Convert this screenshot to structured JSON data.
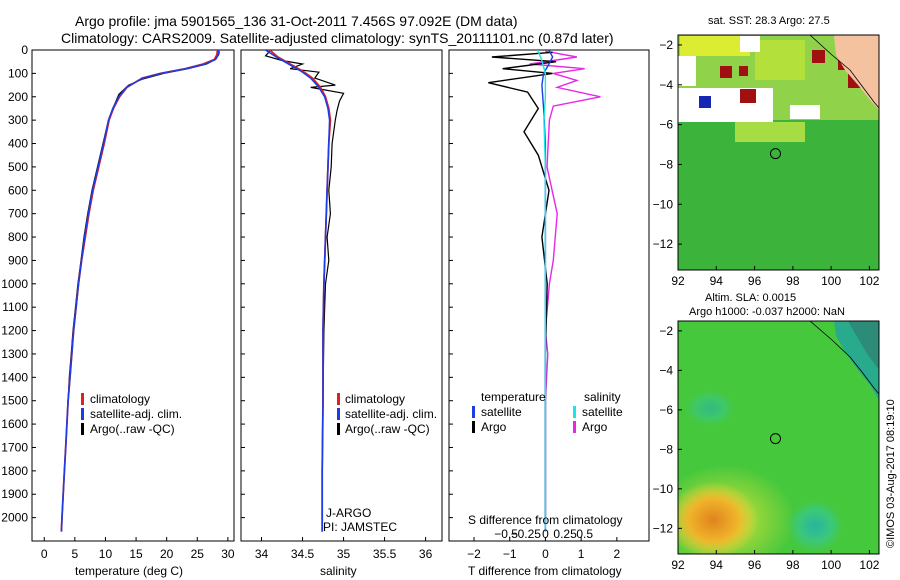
{
  "title": {
    "line1": "Argo profile: jma 5901565_136 31-Oct-2011 7.456S 97.092E (DM data)",
    "line2": "Climatology: CARS2009. Satellite-adjusted climatology: synTS_20111101.nc (0.87d later)"
  },
  "colors": {
    "climatology": "#e02020",
    "satellite": "#1e3ce6",
    "argo": "#000000",
    "argo_sal": "#e628e6",
    "sat_sal": "#19e6e6"
  },
  "depth_axis": {
    "ticks": [
      0,
      100,
      200,
      300,
      400,
      500,
      600,
      700,
      800,
      900,
      1000,
      1100,
      1200,
      1300,
      1400,
      1500,
      1600,
      1700,
      1800,
      1900,
      2000
    ],
    "range": [
      0,
      2100
    ]
  },
  "temp_panel": {
    "xlabel": "temperature (deg C)",
    "xticks": [
      "0",
      "5",
      "10",
      "15",
      "20",
      "25",
      "30"
    ],
    "xticks_num": [
      0,
      5,
      10,
      15,
      20,
      25,
      30
    ],
    "xlim": [
      -2,
      31
    ],
    "legend": [
      "climatology",
      "satellite-adj. clim.",
      "Argo(..raw -QC)"
    ]
  },
  "sal_panel": {
    "xlabel": "salinity",
    "xticks": [
      "34",
      "34.5",
      "35",
      "35.5",
      "36"
    ],
    "xticks_num": [
      34,
      34.5,
      35,
      35.5,
      36
    ],
    "xlim": [
      33.75,
      36.2
    ],
    "legend": [
      "climatology",
      "satellite-adj. clim.",
      "Argo(..raw -QC)"
    ],
    "note1": "J-ARGO",
    "note2": "PI: JAMSTEC"
  },
  "diff_panel": {
    "xlabel": "T difference from climatology",
    "top_label": "S difference from climatology",
    "t_ticks": [
      "−2",
      "−1",
      "0",
      "1",
      "2"
    ],
    "t_ticks_num": [
      -2,
      -1,
      0,
      1,
      2
    ],
    "s_ticks": [
      "−0.5",
      "−0.25",
      "0",
      "0.25",
      "0.5"
    ],
    "xlim": [
      -2.7,
      2.9
    ],
    "legend_temp_title": "temperature",
    "legend_sal_title": "salinity",
    "legend_temp": [
      "satellite",
      "Argo"
    ],
    "legend_sal": [
      "satellite",
      "Argo"
    ]
  },
  "chart_data": [
    {
      "type": "line",
      "name": "temperature profile",
      "xlabel": "temperature (deg C)",
      "ylabel": "depth (m)",
      "series": [
        {
          "name": "climatology",
          "points": [
            [
              28.3,
              0
            ],
            [
              28.2,
              20
            ],
            [
              27.8,
              40
            ],
            [
              26,
              60
            ],
            [
              23,
              80
            ],
            [
              19,
              100
            ],
            [
              16,
              120
            ],
            [
              13.5,
              160
            ],
            [
              12.3,
              200
            ],
            [
              11.3,
              250
            ],
            [
              10.6,
              300
            ],
            [
              9.8,
              400
            ],
            [
              8.9,
              500
            ],
            [
              8,
              600
            ],
            [
              7.3,
              700
            ],
            [
              6.7,
              800
            ],
            [
              6.1,
              900
            ],
            [
              5.6,
              1000
            ],
            [
              5.2,
              1100
            ],
            [
              4.8,
              1200
            ],
            [
              4.5,
              1300
            ],
            [
              4.2,
              1400
            ],
            [
              3.9,
              1500
            ],
            [
              3.7,
              1600
            ],
            [
              3.5,
              1700
            ],
            [
              3.3,
              1800
            ],
            [
              3.1,
              1900
            ],
            [
              2.9,
              2000
            ],
            [
              2.8,
              2060
            ]
          ]
        },
        {
          "name": "satellite-adj. clim.",
          "points": [
            [
              28.5,
              0
            ],
            [
              28.4,
              20
            ],
            [
              28,
              40
            ],
            [
              26.3,
              60
            ],
            [
              23.2,
              80
            ],
            [
              19.1,
              100
            ],
            [
              16.1,
              120
            ],
            [
              13.4,
              160
            ],
            [
              12.2,
              200
            ],
            [
              11.2,
              250
            ],
            [
              10.5,
              300
            ],
            [
              9.7,
              400
            ],
            [
              8.8,
              500
            ],
            [
              7.9,
              600
            ],
            [
              7.2,
              700
            ],
            [
              6.6,
              800
            ],
            [
              6.1,
              900
            ],
            [
              5.6,
              1000
            ],
            [
              5.2,
              1100
            ],
            [
              4.8,
              1200
            ],
            [
              4.5,
              1300
            ],
            [
              4.2,
              1400
            ],
            [
              3.9,
              1500
            ],
            [
              3.7,
              1600
            ],
            [
              3.5,
              1700
            ],
            [
              3.3,
              1800
            ],
            [
              3.1,
              1900
            ],
            [
              2.9,
              2000
            ],
            [
              2.8,
              2060
            ]
          ]
        },
        {
          "name": "Argo",
          "points": [
            [
              28.6,
              5
            ],
            [
              28.5,
              20
            ],
            [
              28,
              40
            ],
            [
              26.5,
              60
            ],
            [
              23.5,
              80
            ],
            [
              19.5,
              100
            ],
            [
              16,
              125
            ],
            [
              13.8,
              150
            ],
            [
              12.2,
              190
            ],
            [
              11.2,
              250
            ],
            [
              10.4,
              310
            ],
            [
              9.6,
              400
            ],
            [
              8.7,
              500
            ],
            [
              7.8,
              600
            ],
            [
              7.1,
              700
            ],
            [
              6.5,
              800
            ],
            [
              6,
              900
            ],
            [
              5.5,
              1000
            ],
            [
              5.1,
              1100
            ],
            [
              4.7,
              1200
            ],
            [
              4.4,
              1300
            ],
            [
              4.1,
              1400
            ],
            [
              3.9,
              1500
            ],
            [
              3.7,
              1600
            ],
            [
              3.5,
              1700
            ],
            [
              3.3,
              1800
            ],
            [
              3.1,
              1900
            ],
            [
              2.9,
              2000
            ],
            [
              2.8,
              2030
            ]
          ]
        }
      ]
    },
    {
      "type": "line",
      "name": "salinity profile",
      "xlabel": "salinity",
      "ylabel": "depth (m)",
      "series": [
        {
          "name": "climatology",
          "points": [
            [
              34.1,
              0
            ],
            [
              34.2,
              30
            ],
            [
              34.35,
              60
            ],
            [
              34.5,
              90
            ],
            [
              34.62,
              120
            ],
            [
              34.72,
              160
            ],
            [
              34.78,
              200
            ],
            [
              34.82,
              250
            ],
            [
              34.84,
              300
            ],
            [
              34.82,
              400
            ],
            [
              34.8,
              600
            ],
            [
              34.78,
              800
            ],
            [
              34.76,
              1000
            ],
            [
              34.75,
              1200
            ],
            [
              34.75,
              1500
            ],
            [
              34.74,
              1800
            ],
            [
              34.74,
              2060
            ]
          ]
        },
        {
          "name": "satellite-adj. clim.",
          "points": [
            [
              34.05,
              0
            ],
            [
              34.18,
              30
            ],
            [
              34.33,
              60
            ],
            [
              34.48,
              90
            ],
            [
              34.6,
              120
            ],
            [
              34.7,
              160
            ],
            [
              34.77,
              200
            ],
            [
              34.81,
              250
            ],
            [
              34.83,
              300
            ],
            [
              34.82,
              400
            ],
            [
              34.8,
              600
            ],
            [
              34.78,
              800
            ],
            [
              34.76,
              1000
            ],
            [
              34.75,
              1200
            ],
            [
              34.75,
              1500
            ],
            [
              34.74,
              1800
            ],
            [
              34.74,
              2060
            ]
          ]
        },
        {
          "name": "Argo",
          "points": [
            [
              34.1,
              5
            ],
            [
              34.05,
              25
            ],
            [
              34.25,
              45
            ],
            [
              34.5,
              60
            ],
            [
              34.35,
              80
            ],
            [
              34.7,
              95
            ],
            [
              34.65,
              120
            ],
            [
              34.9,
              150
            ],
            [
              34.6,
              160
            ],
            [
              35.0,
              185
            ],
            [
              34.95,
              220
            ],
            [
              34.92,
              260
            ],
            [
              34.9,
              300
            ],
            [
              34.86,
              400
            ],
            [
              34.85,
              500
            ],
            [
              34.82,
              600
            ],
            [
              34.84,
              700
            ],
            [
              34.8,
              800
            ],
            [
              34.82,
              900
            ],
            [
              34.78,
              1000
            ],
            [
              34.76,
              1200
            ],
            [
              34.75,
              1500
            ],
            [
              34.74,
              1800
            ],
            [
              34.74,
              2000
            ]
          ]
        }
      ]
    },
    {
      "type": "line",
      "name": "difference from climatology",
      "xlabel": "T difference from climatology",
      "x2label": "S difference from climatology",
      "series": [
        {
          "name": "temperature satellite",
          "points": [
            [
              0.1,
              0
            ],
            [
              0.2,
              30
            ],
            [
              0.1,
              60
            ],
            [
              -0.05,
              100
            ],
            [
              -0.1,
              150
            ],
            [
              -0.05,
              250
            ],
            [
              0,
              400
            ],
            [
              0,
              1000
            ],
            [
              0,
              2060
            ]
          ]
        },
        {
          "name": "temperature Argo",
          "points": [
            [
              0.2,
              10
            ],
            [
              -1.5,
              30
            ],
            [
              0.3,
              50
            ],
            [
              -1.2,
              80
            ],
            [
              0.2,
              100
            ],
            [
              -1.6,
              140
            ],
            [
              -0.5,
              180
            ],
            [
              -0.2,
              250
            ],
            [
              -0.6,
              350
            ],
            [
              -0.2,
              450
            ],
            [
              0.1,
              600
            ],
            [
              -0.1,
              800
            ],
            [
              0.05,
              1000
            ],
            [
              0,
              1300
            ],
            [
              0,
              1500
            ],
            [
              0,
              2030
            ]
          ]
        },
        {
          "name": "salinity satellite",
          "points": [
            [
              -0.1,
              0
            ],
            [
              -0.05,
              40
            ],
            [
              0,
              100
            ],
            [
              0,
              200
            ],
            [
              -0.02,
              300
            ],
            [
              0,
              500
            ],
            [
              0,
              1000
            ],
            [
              0,
              2060
            ]
          ]
        },
        {
          "name": "salinity Argo",
          "points": [
            [
              0,
              5
            ],
            [
              0.4,
              30
            ],
            [
              -0.2,
              60
            ],
            [
              0.5,
              80
            ],
            [
              0.1,
              100
            ],
            [
              0.4,
              130
            ],
            [
              0.15,
              160
            ],
            [
              0.7,
              200
            ],
            [
              0.1,
              240
            ],
            [
              0.05,
              300
            ],
            [
              0.02,
              500
            ],
            [
              0.15,
              700
            ],
            [
              0.1,
              900
            ],
            [
              0.05,
              1000
            ],
            [
              0,
              1200
            ],
            [
              0.03,
              1300
            ],
            [
              0,
              1500
            ],
            [
              0,
              2000
            ]
          ]
        }
      ]
    },
    {
      "type": "heatmap",
      "name": "satellite SST map",
      "title": "sat. SST: 28.3 Argo: 27.5",
      "xticks": [
        "92",
        "94",
        "96",
        "98",
        "100",
        "102"
      ],
      "yticks": [
        "−2",
        "−4",
        "−6",
        "−8",
        "−10",
        "−12"
      ],
      "xlim": [
        92,
        102.5
      ],
      "ylim": [
        -13.3,
        -1.5
      ],
      "argo_position": [
        97.092,
        -7.456
      ]
    },
    {
      "type": "heatmap",
      "name": "altimetry SLA map",
      "title": "Altim. SLA: 0.0015",
      "subtitle": "Argo h1000: -0.037 h2000: NaN",
      "xticks": [
        "92",
        "94",
        "96",
        "98",
        "100",
        "102"
      ],
      "yticks": [
        "−2",
        "−4",
        "−6",
        "−8",
        "−10",
        "−12"
      ],
      "xlim": [
        92,
        102.5
      ],
      "ylim": [
        -13.3,
        -1.5
      ],
      "argo_position": [
        97.092,
        -7.456
      ]
    }
  ],
  "credit": "©IMOS 03-Aug-2017 08:19:10"
}
